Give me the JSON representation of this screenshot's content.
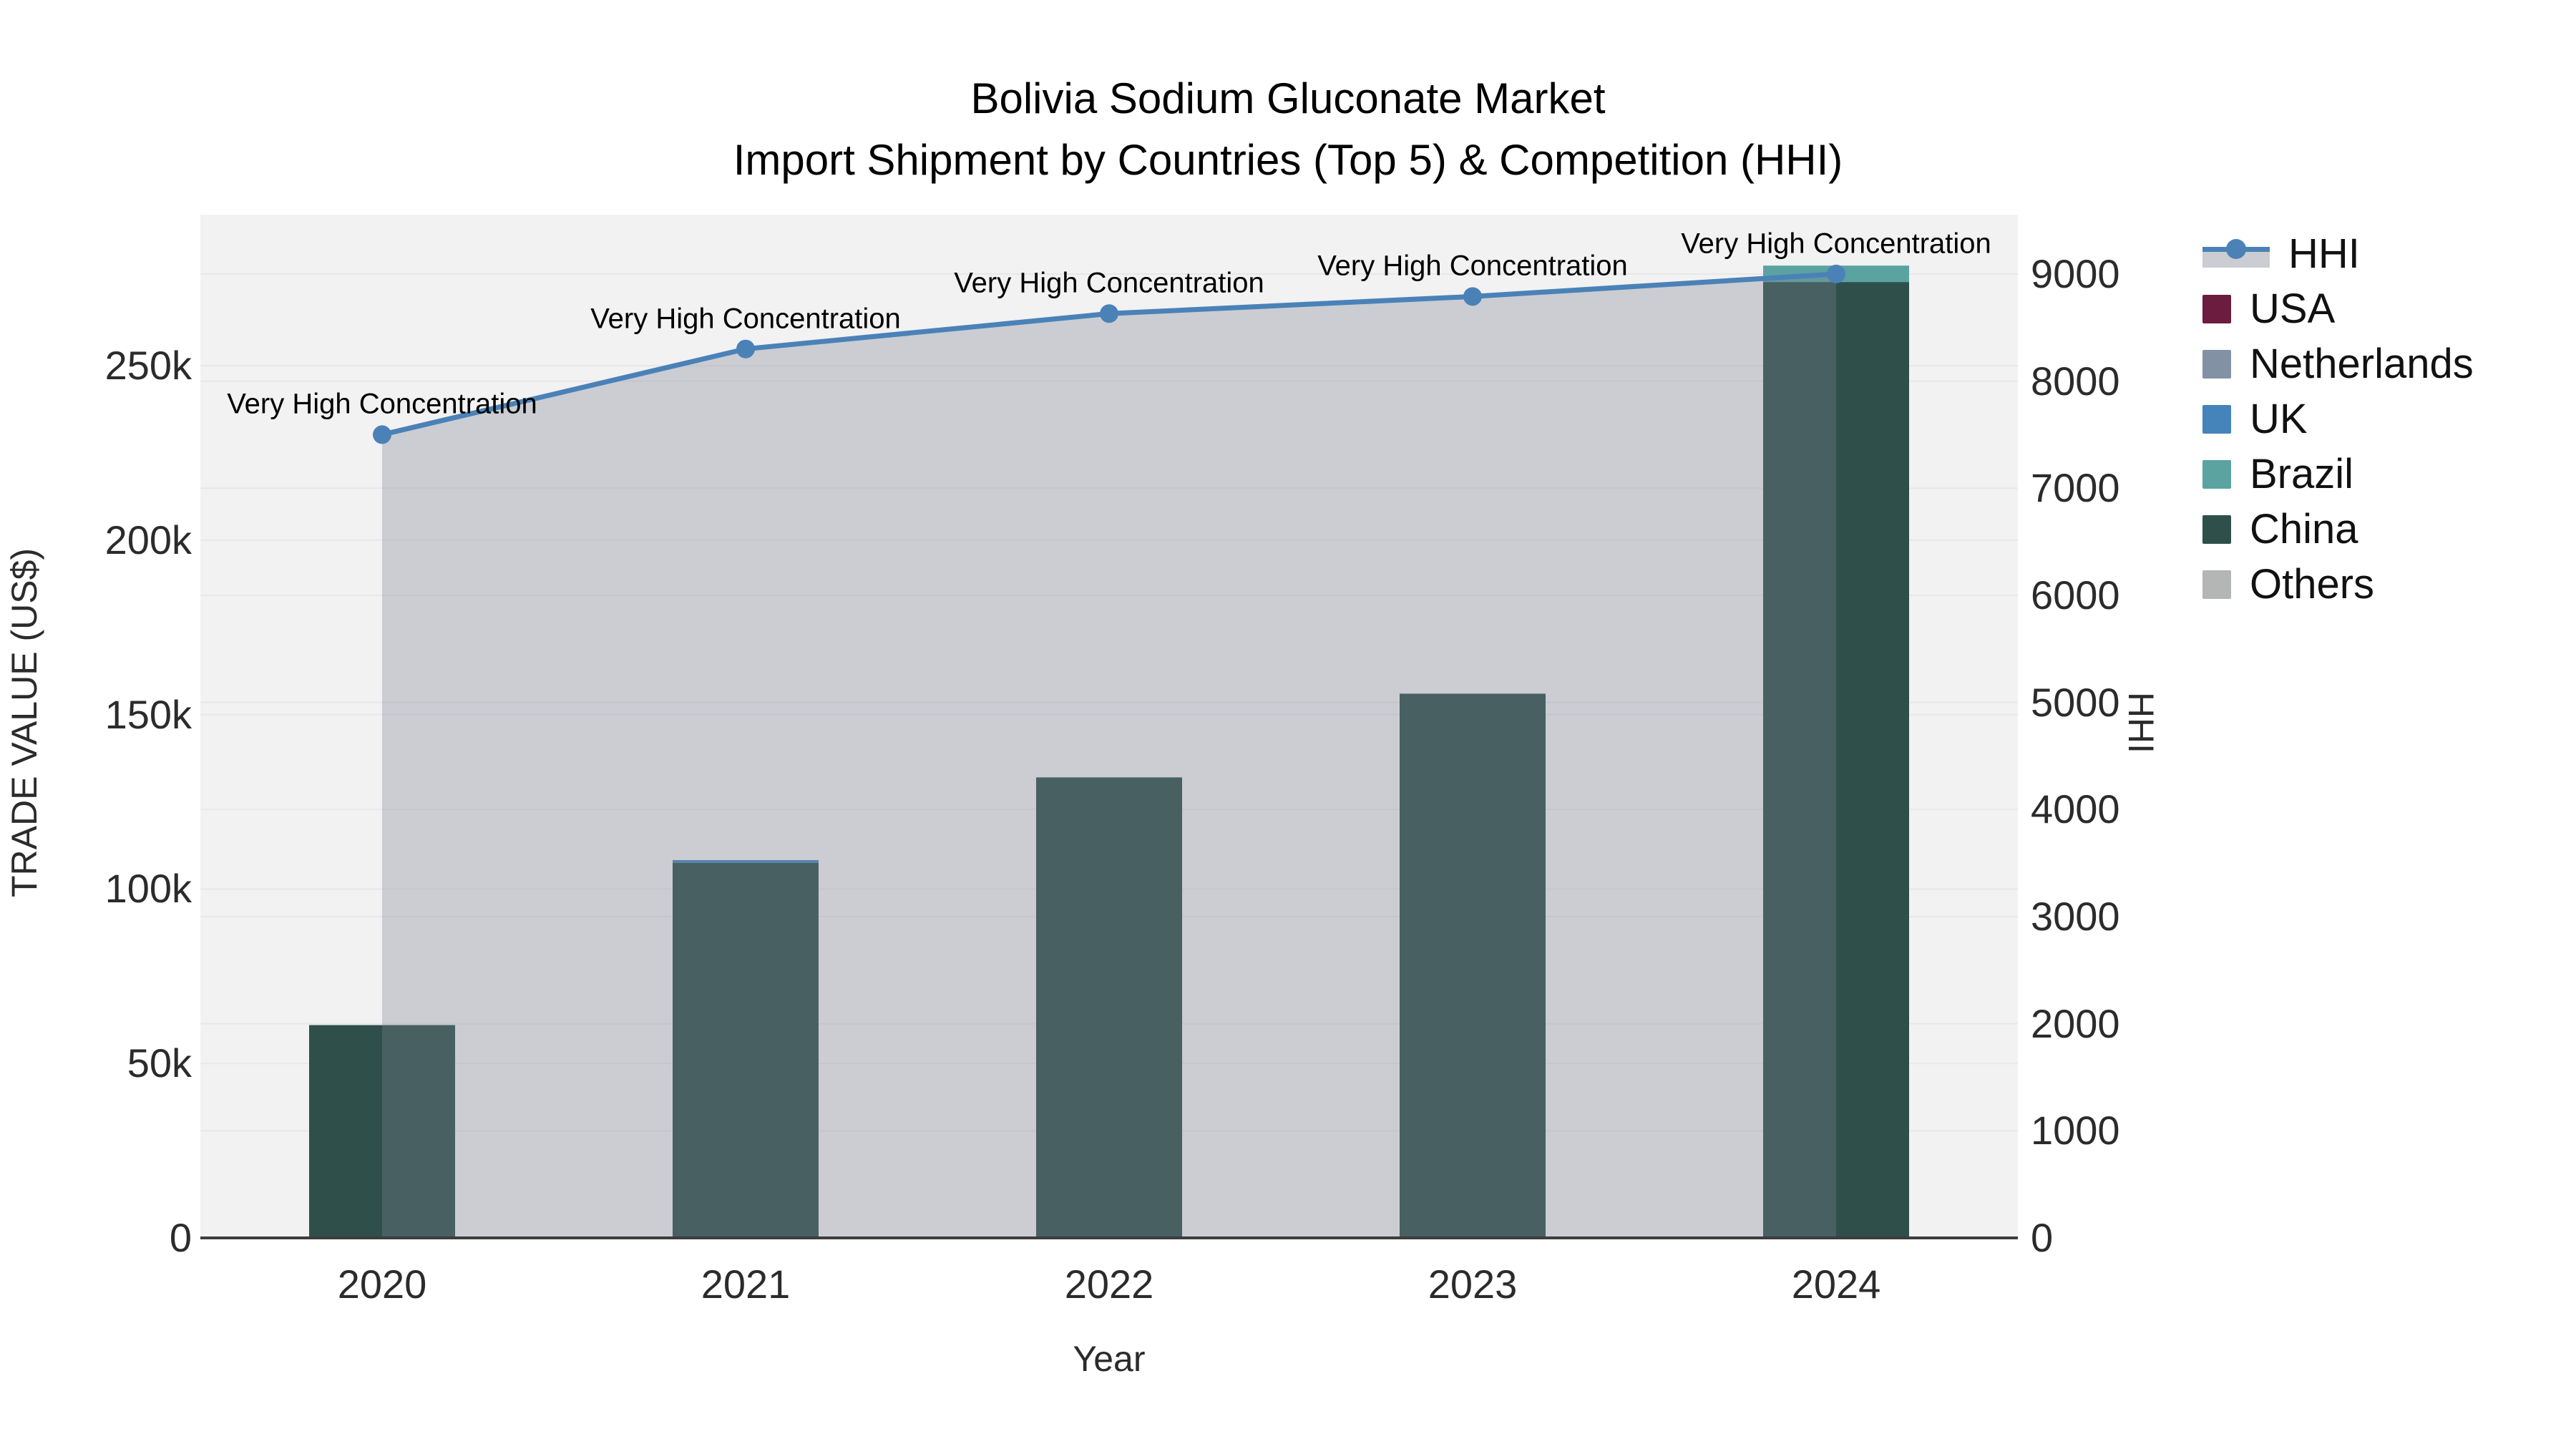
{
  "figure": {
    "title_line1": "Bolivia Sodium Gluconate Market",
    "title_line2": "Import Shipment by Countries (Top 5) & Competition (HHI)"
  },
  "legend": {
    "items": [
      {
        "label": "HHI",
        "kind": "line",
        "color": "#4a82b8",
        "band_color": "#cbcdd2"
      },
      {
        "label": "USA",
        "kind": "bar",
        "color": "#6b1c3f"
      },
      {
        "label": "Netherlands",
        "kind": "bar",
        "color": "#8292a4"
      },
      {
        "label": "UK",
        "kind": "bar",
        "color": "#4583bb"
      },
      {
        "label": "Brazil",
        "kind": "bar",
        "color": "#5aa3a0"
      },
      {
        "label": "China",
        "kind": "bar",
        "color": "#2f4f4a"
      },
      {
        "label": "Others",
        "kind": "bar",
        "color": "#b3b6b5"
      }
    ]
  },
  "chart_data": {
    "type": "combo",
    "title": "Bolivia Sodium Gluconate Market",
    "subtitle": "Import Shipment by Countries (Top 5) & Competition (HHI)",
    "categories": [
      "2020",
      "2021",
      "2022",
      "2023",
      "2024"
    ],
    "stack_order_bottom_to_top": [
      "China",
      "Brazil",
      "UK",
      "Netherlands",
      "USA",
      "Others"
    ],
    "series": [
      {
        "name": "USA",
        "type": "bar",
        "color": "#6b1c3f",
        "values": [
          0,
          0,
          0,
          0,
          0
        ]
      },
      {
        "name": "Netherlands",
        "type": "bar",
        "color": "#8292a4",
        "values": [
          0,
          0,
          0,
          0,
          0
        ]
      },
      {
        "name": "UK",
        "type": "bar",
        "color": "#4583bb",
        "values": [
          0,
          800,
          0,
          0,
          0
        ]
      },
      {
        "name": "Brazil",
        "type": "bar",
        "color": "#5aa3a0",
        "values": [
          0,
          0,
          0,
          0,
          4700
        ]
      },
      {
        "name": "China",
        "type": "bar",
        "color": "#2f4f4a",
        "values": [
          61000,
          107500,
          132000,
          156000,
          274000
        ]
      },
      {
        "name": "Others",
        "type": "bar",
        "color": "#b3b6b5",
        "values": [
          0,
          0,
          0,
          0,
          0
        ]
      },
      {
        "name": "HHI",
        "type": "line",
        "axis": "right",
        "color": "#4a82b8",
        "fill": "tozeroy",
        "fill_color": "rgba(125,130,145,0.33)",
        "values": [
          7500,
          8300,
          8630,
          8790,
          9000
        ]
      }
    ],
    "annotations": [
      {
        "text": "Very High Concentration",
        "category": "2020",
        "hhi": 7500
      },
      {
        "text": "Very High Concentration",
        "category": "2021",
        "hhi": 8300
      },
      {
        "text": "Very High Concentration",
        "category": "2022",
        "hhi": 8630
      },
      {
        "text": "Very High Concentration",
        "category": "2023",
        "hhi": 8790
      },
      {
        "text": "Very High Concentration",
        "category": "2024",
        "hhi": 9000
      }
    ],
    "axes": {
      "x": {
        "label": "Year"
      },
      "left": {
        "label": "TRADE VALUE (US$)",
        "ticks": [
          "0",
          "50k",
          "100k",
          "150k",
          "200k",
          "250k"
        ],
        "tick_values": [
          0,
          50000,
          100000,
          150000,
          200000,
          250000
        ],
        "range": [
          0,
          293300
        ]
      },
      "right": {
        "label": "HHI",
        "ticks": [
          "0",
          "1000",
          "2000",
          "3000",
          "4000",
          "5000",
          "6000",
          "7000",
          "8000",
          "9000"
        ],
        "tick_values": [
          0,
          1000,
          2000,
          3000,
          4000,
          5000,
          6000,
          7000,
          8000,
          9000
        ],
        "range": [
          0,
          9554
        ]
      }
    },
    "grid": true,
    "plot_bg": "#f2f2f2",
    "grid_color": "#e7e7e9",
    "axis_line_color": "#3d3d3d",
    "legend_position": "right"
  }
}
